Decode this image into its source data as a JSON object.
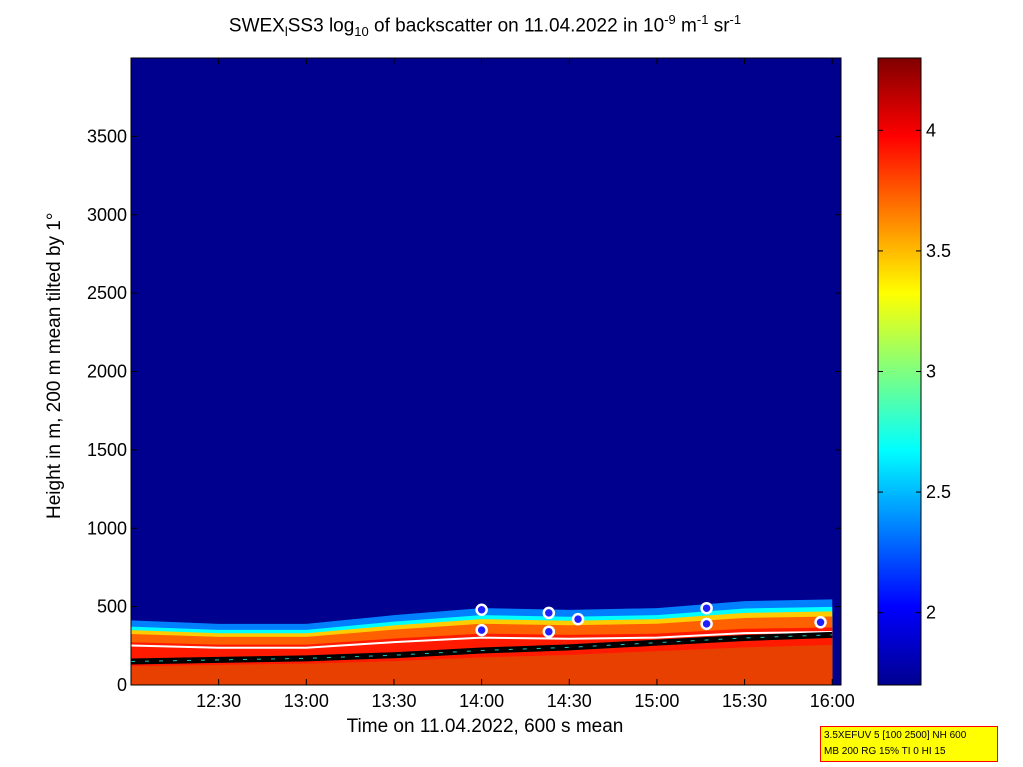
{
  "title": {
    "part1": "SWEX",
    "sub1": "l",
    "part2": "SS3 log",
    "sub2": "10",
    "part3": " of backscatter on 11.04.2022 in 10",
    "sup1": "-9",
    "part4": " m",
    "sup2": "-1",
    "part5": " sr",
    "sup3": "-1"
  },
  "info_box": {
    "line1": "3.5XEFUV 5 [100 2500] NH 600",
    "line2": "MB 200 RG 15% TI 0 HI 15"
  },
  "colors": {
    "background_low": "#00008f",
    "colormap": "jet"
  },
  "chart_data": {
    "type": "heatmap",
    "xlabel": "Time on 11.04.2022, 600 s mean",
    "ylabel": "Height in m, 200 m mean tilted by 1°",
    "xlim": [
      "12:00",
      "16:03"
    ],
    "ylim": [
      0,
      4000
    ],
    "x_ticks": [
      "12:30",
      "13:00",
      "13:30",
      "14:00",
      "14:30",
      "15:00",
      "15:30",
      "16:00"
    ],
    "y_ticks": [
      0,
      500,
      1000,
      1500,
      2000,
      2500,
      3000,
      3500
    ],
    "colorbar": {
      "range": [
        1.7,
        4.3
      ],
      "ticks": [
        2,
        2.5,
        3,
        3.5,
        4
      ]
    },
    "layer_top": {
      "x": [
        "12:00",
        "12:30",
        "13:00",
        "13:30",
        "14:00",
        "14:30",
        "15:00",
        "15:30",
        "16:00"
      ],
      "y": [
        350,
        330,
        330,
        380,
        420,
        410,
        420,
        460,
        470
      ]
    },
    "boundary_line": {
      "x": [
        "12:00",
        "12:30",
        "13:00",
        "13:30",
        "14:00",
        "14:30",
        "15:00",
        "15:30",
        "16:00"
      ],
      "y": [
        150,
        160,
        170,
        190,
        220,
        240,
        270,
        300,
        320
      ]
    },
    "markers": [
      {
        "x": "14:00",
        "y": 480
      },
      {
        "x": "14:00",
        "y": 350
      },
      {
        "x": "14:23",
        "y": 460
      },
      {
        "x": "14:23",
        "y": 340
      },
      {
        "x": "14:33",
        "y": 420
      },
      {
        "x": "15:17",
        "y": 490
      },
      {
        "x": "15:17",
        "y": 390
      },
      {
        "x": "15:56",
        "y": 400
      }
    ]
  }
}
